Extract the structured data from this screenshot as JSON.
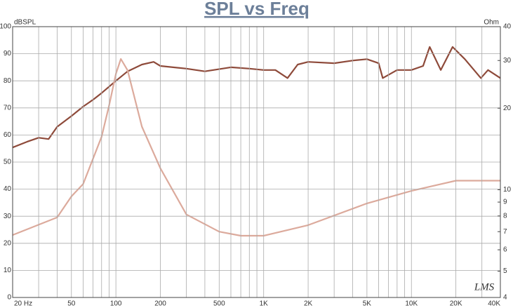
{
  "chart_data": {
    "type": "line",
    "title": "SPL vs Freq",
    "y_label": "dBSPL",
    "y2_label": "Ohm",
    "watermark": "LMS",
    "xscale": "log",
    "xlim": [
      20,
      40000
    ],
    "xticks": [
      {
        "value": 20,
        "label": "20  Hz"
      },
      50,
      100,
      200,
      500,
      {
        "value": 1000,
        "label": "1K"
      },
      {
        "value": 2000,
        "label": "2K"
      },
      {
        "value": 5000,
        "label": "5K"
      },
      {
        "value": 10000,
        "label": "10K"
      },
      {
        "value": 20000,
        "label": "20K"
      },
      {
        "value": 40000,
        "label": "40K"
      }
    ],
    "x_grid": [
      20,
      30,
      40,
      50,
      60,
      70,
      80,
      90,
      100,
      200,
      300,
      400,
      500,
      600,
      700,
      800,
      900,
      1000,
      2000,
      3000,
      4000,
      5000,
      6000,
      7000,
      8000,
      9000,
      10000,
      20000,
      30000,
      40000
    ],
    "ylim": [
      0,
      100
    ],
    "yticks": [
      0,
      10,
      20,
      30,
      40,
      50,
      60,
      70,
      80,
      90,
      100
    ],
    "y2scale": "log",
    "y2lim": [
      4,
      40
    ],
    "y2ticks": [
      4,
      5,
      6,
      7,
      8,
      9,
      10,
      20,
      30,
      40
    ],
    "grid": true,
    "series": [
      {
        "color": "#8e4a3a",
        "axis": "y",
        "x": [
          20,
          25,
          30,
          35,
          40,
          50,
          60,
          70,
          80,
          100,
          120,
          150,
          180,
          200,
          300,
          400,
          600,
          800,
          1000,
          1200,
          1450,
          1700,
          2000,
          3000,
          4000,
          5000,
          6000,
          6400,
          8000,
          10000,
          12000,
          13300,
          15800,
          19000,
          23000,
          29500,
          33000,
          40000
        ],
        "values": [
          55.4,
          57.5,
          59,
          58.5,
          63,
          67,
          70.5,
          73,
          75.5,
          80,
          83.5,
          86,
          87,
          85.5,
          84.5,
          83.5,
          85,
          84.5,
          84,
          84,
          81,
          86,
          87,
          86.5,
          87.5,
          88,
          86.5,
          81,
          84,
          84,
          85.5,
          92.5,
          84,
          92.5,
          88,
          81,
          84,
          81
        ]
      },
      {
        "color": "#dcaa9c",
        "axis": "y2",
        "x": [
          20,
          40,
          50,
          60,
          80,
          90,
          100,
          108,
          120,
          150,
          200,
          300,
          500,
          700,
          1000,
          2000,
          5000,
          10000,
          20000,
          40000
        ],
        "values": [
          6.8,
          7.9,
          9.45,
          10.5,
          15.7,
          20.5,
          26.8,
          30.4,
          27.6,
          17.1,
          12,
          8.1,
          7,
          6.76,
          6.76,
          7.4,
          8.9,
          9.9,
          10.8,
          10.8
        ]
      }
    ]
  }
}
